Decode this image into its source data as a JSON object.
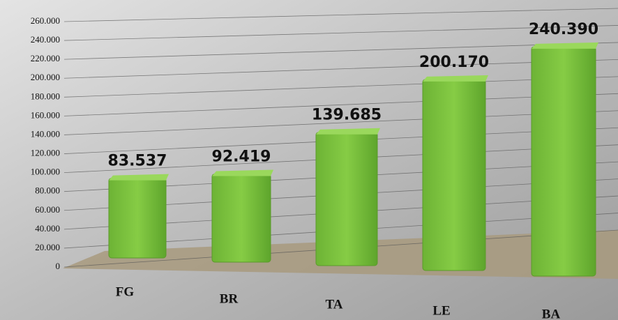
{
  "chart_data": {
    "type": "bar3d",
    "categories": [
      "FG",
      "BR",
      "TA",
      "LE",
      "BA"
    ],
    "values": [
      83537,
      92419,
      139685,
      200170,
      240390
    ],
    "value_labels": [
      "83.537",
      "92.419",
      "139.685",
      "200.170",
      "240.390"
    ],
    "color": "#7cc242",
    "ylim": [
      0,
      260000
    ],
    "yticks": [
      0,
      {
        "value": 20000,
        "label": "20.000"
      },
      {
        "value": 40000,
        "label": "40.000"
      },
      {
        "value": 60000,
        "label": "60.000"
      },
      {
        "value": 80000,
        "label": "80.000"
      },
      {
        "value": 100000,
        "label": "100.000"
      },
      {
        "value": 120000,
        "label": "120.000"
      },
      {
        "value": 140000,
        "label": "140.000"
      },
      {
        "value": 160000,
        "label": "160.000"
      },
      {
        "value": 180000,
        "label": "180.000"
      },
      {
        "value": 200000,
        "label": "200.000"
      },
      {
        "value": 220000,
        "label": "220.000"
      },
      {
        "value": 240000,
        "label": "240.000"
      },
      {
        "value": 260000,
        "label": "260.000"
      }
    ],
    "grid": true
  }
}
